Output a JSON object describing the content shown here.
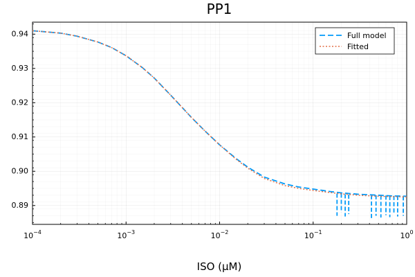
{
  "chart_data": {
    "type": "line",
    "title": "PP1",
    "xlabel": "ISO (μM)",
    "ylabel": "",
    "xscale": "log10",
    "xlim": [
      0.0001,
      1
    ],
    "ylim": [
      0.8845,
      0.9435
    ],
    "x_ticks": [
      {
        "base": "10",
        "exp": "−4",
        "value": 0.0001
      },
      {
        "base": "10",
        "exp": "−3",
        "value": 0.001
      },
      {
        "base": "10",
        "exp": "−2",
        "value": 0.01
      },
      {
        "base": "10",
        "exp": "−1",
        "value": 0.1
      },
      {
        "base": "10",
        "exp": "0",
        "value": 1
      }
    ],
    "y_ticks": [
      "0.89",
      "0.90",
      "0.91",
      "0.92",
      "0.93",
      "0.94"
    ],
    "grid": true,
    "legend_position": "top-right",
    "series": [
      {
        "name": "Full model",
        "color": "#009af9",
        "style": "dashed",
        "x": [
          0.0001,
          0.0002,
          0.0003,
          0.0005,
          0.0007,
          0.001,
          0.0015,
          0.002,
          0.003,
          0.005,
          0.007,
          0.01,
          0.015,
          0.02,
          0.03,
          0.05,
          0.07,
          0.1,
          0.15,
          0.2,
          0.3,
          0.5,
          0.7,
          1.0
        ],
        "y": [
          0.941,
          0.9403,
          0.9394,
          0.9377,
          0.9361,
          0.9337,
          0.9302,
          0.9272,
          0.9222,
          0.9157,
          0.9117,
          0.9077,
          0.9037,
          0.9012,
          0.8983,
          0.8963,
          0.8954,
          0.8948,
          0.8941,
          0.8937,
          0.8933,
          0.893,
          0.8928,
          0.8927
        ]
      },
      {
        "name": "Fitted",
        "color": "#e26f46",
        "style": "dotted",
        "x": [
          0.0001,
          0.0002,
          0.0003,
          0.0005,
          0.0007,
          0.001,
          0.0015,
          0.002,
          0.003,
          0.005,
          0.007,
          0.01,
          0.015,
          0.02,
          0.03,
          0.05,
          0.07,
          0.1,
          0.15,
          0.2,
          0.3,
          0.5,
          0.7,
          1.0
        ],
        "y": [
          0.941,
          0.9403,
          0.9394,
          0.9377,
          0.9361,
          0.9337,
          0.9302,
          0.9272,
          0.9222,
          0.9157,
          0.9117,
          0.9077,
          0.9035,
          0.9009,
          0.8979,
          0.8958,
          0.895,
          0.8944,
          0.8938,
          0.8934,
          0.893,
          0.8927,
          0.8926,
          0.8925
        ]
      }
    ],
    "noise_spikes": [
      {
        "x": 0.18,
        "y0": 0.8935,
        "y1": 0.887
      },
      {
        "x": 0.2,
        "y0": 0.8935,
        "y1": 0.888
      },
      {
        "x": 0.22,
        "y0": 0.8933,
        "y1": 0.8868
      },
      {
        "x": 0.24,
        "y0": 0.8932,
        "y1": 0.8875
      },
      {
        "x": 0.42,
        "y0": 0.893,
        "y1": 0.8862
      },
      {
        "x": 0.47,
        "y0": 0.893,
        "y1": 0.887
      },
      {
        "x": 0.53,
        "y0": 0.8929,
        "y1": 0.8865
      },
      {
        "x": 0.6,
        "y0": 0.8929,
        "y1": 0.8872
      },
      {
        "x": 0.66,
        "y0": 0.8928,
        "y1": 0.8866
      },
      {
        "x": 0.73,
        "y0": 0.8928,
        "y1": 0.8875
      },
      {
        "x": 0.8,
        "y0": 0.8928,
        "y1": 0.8868
      },
      {
        "x": 0.92,
        "y0": 0.8927,
        "y1": 0.887
      }
    ]
  }
}
